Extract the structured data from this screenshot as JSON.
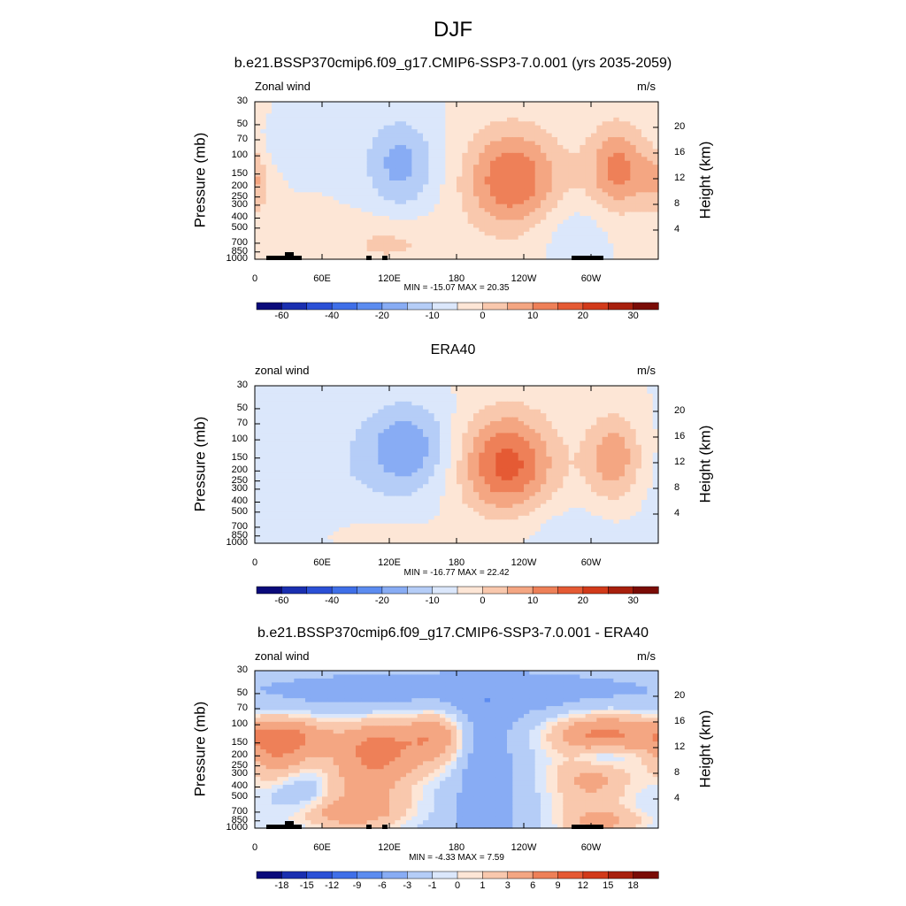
{
  "title": "DJF",
  "chart_data": [
    {
      "type": "heatmap",
      "title": "b.e21.BSSP370cmip6.f09_g17.CMIP6-SSP3-7.0.001 (yrs 2035-2059)",
      "left_label": "Zonal wind",
      "right_label": "m/s",
      "ylabel": "Pressure (mb)",
      "ylabel_right": "Height (km)",
      "x_ticks": [
        "0",
        "60E",
        "120E",
        "180",
        "120W",
        "60W"
      ],
      "y_ticks": [
        "30",
        "50",
        "70",
        "100",
        "150",
        "200",
        "250",
        "300",
        "400",
        "500",
        "700",
        "850",
        "1000"
      ],
      "y_right_ticks": [
        "20",
        "16",
        "12",
        "8",
        "4"
      ],
      "stats": "MIN = -15.07  MAX =  20.35",
      "colorbar_labels": [
        "-60",
        "-40",
        "-20",
        "-10",
        "0",
        "10",
        "20",
        "30"
      ],
      "features": [
        {
          "lon": 0,
          "p": 170,
          "value": 8,
          "dlon": 10,
          "dlogp": 0.25
        },
        {
          "lon": 30,
          "p": 80,
          "value": -4,
          "dlon": 30,
          "dlogp": 0.15
        },
        {
          "lon": 130,
          "p": 120,
          "value": -12,
          "dlon": 22,
          "dlogp": 0.3
        },
        {
          "lon": 230,
          "p": 170,
          "value": 20,
          "dlon": 30,
          "dlogp": 0.35
        },
        {
          "lon": 325,
          "p": 130,
          "value": 17,
          "dlon": 20,
          "dlogp": 0.3
        },
        {
          "lon": 120,
          "p": 700,
          "value": 6,
          "dlon": 40,
          "dlogp": 0.18
        },
        {
          "lon": 280,
          "p": 500,
          "value": -4,
          "dlon": 25,
          "dlogp": 0.2
        },
        {
          "lon": 0,
          "p": 850,
          "value": 4,
          "dlon": 15,
          "dlogp": 0.15
        }
      ]
    },
    {
      "type": "heatmap",
      "title": "ERA40",
      "left_label": "zonal wind",
      "right_label": "m/s",
      "ylabel": "Pressure (mb)",
      "ylabel_right": "Height (km)",
      "x_ticks": [
        "0",
        "60E",
        "120E",
        "180",
        "120W",
        "60W"
      ],
      "y_ticks": [
        "30",
        "50",
        "70",
        "100",
        "150",
        "200",
        "250",
        "300",
        "400",
        "500",
        "700",
        "850",
        "1000"
      ],
      "y_right_ticks": [
        "20",
        "16",
        "12",
        "8",
        "4"
      ],
      "stats": "MIN = -16.77  MAX =  22.42",
      "colorbar_labels": [
        "-60",
        "-40",
        "-20",
        "-10",
        "0",
        "10",
        "20",
        "30"
      ],
      "features": [
        {
          "lon": 135,
          "p": 120,
          "value": -14,
          "dlon": 28,
          "dlogp": 0.3
        },
        {
          "lon": 225,
          "p": 170,
          "value": 22,
          "dlon": 30,
          "dlogp": 0.35
        },
        {
          "lon": 320,
          "p": 150,
          "value": 14,
          "dlon": 18,
          "dlogp": 0.3
        },
        {
          "lon": 50,
          "p": 300,
          "value": -4,
          "dlon": 45,
          "dlogp": 0.5
        },
        {
          "lon": 90,
          "p": 800,
          "value": 3,
          "dlon": 40,
          "dlogp": 0.12
        },
        {
          "lon": 270,
          "p": 700,
          "value": -3,
          "dlon": 40,
          "dlogp": 0.2
        }
      ]
    },
    {
      "type": "heatmap",
      "title": "b.e21.BSSP370cmip6.f09_g17.CMIP6-SSP3-7.0.001 - ERA40",
      "left_label": "zonal wind",
      "right_label": "m/s",
      "ylabel": "Pressure (mb)",
      "ylabel_right": "Height (km)",
      "x_ticks": [
        "0",
        "60E",
        "120E",
        "180",
        "120W",
        "60W"
      ],
      "y_ticks": [
        "30",
        "50",
        "70",
        "100",
        "150",
        "200",
        "250",
        "300",
        "400",
        "500",
        "700",
        "850",
        "1000"
      ],
      "y_right_ticks": [
        "20",
        "16",
        "12",
        "8",
        "4"
      ],
      "stats": "MIN =  -4.33  MAX =   7.59",
      "colorbar_labels": [
        "-18",
        "-15",
        "-12",
        "-9",
        "-6",
        "-3",
        "-1",
        "0",
        "1",
        "3",
        "6",
        "9",
        "12",
        "15",
        "18"
      ],
      "base": -2.5,
      "features": [
        {
          "lon": 30,
          "p": 130,
          "value": 8,
          "dlon": 30,
          "dlogp": 0.15
        },
        {
          "lon": 110,
          "p": 150,
          "value": 7,
          "dlon": 25,
          "dlogp": 0.2
        },
        {
          "lon": 160,
          "p": 130,
          "value": 7,
          "dlon": 20,
          "dlogp": 0.2
        },
        {
          "lon": 310,
          "p": 120,
          "value": 8,
          "dlon": 35,
          "dlogp": 0.15
        },
        {
          "lon": 20,
          "p": 250,
          "value": 5,
          "dlon": 20,
          "dlogp": 0.2
        },
        {
          "lon": 100,
          "p": 350,
          "value": 6,
          "dlon": 35,
          "dlogp": 0.25
        },
        {
          "lon": 300,
          "p": 350,
          "value": 6,
          "dlon": 30,
          "dlogp": 0.25
        },
        {
          "lon": 80,
          "p": 750,
          "value": 5,
          "dlon": 40,
          "dlogp": 0.12
        },
        {
          "lon": 310,
          "p": 900,
          "value": 5,
          "dlon": 30,
          "dlogp": 0.1
        },
        {
          "lon": 205,
          "p": 400,
          "value": -3,
          "dlon": 15,
          "dlogp": 0.8
        },
        {
          "lon": 40,
          "p": 420,
          "value": -3,
          "dlon": 18,
          "dlogp": 0.15
        },
        {
          "lon": 310,
          "p": 200,
          "value": -4,
          "dlon": 20,
          "dlogp": 0.08
        },
        {
          "lon": 180,
          "p": 55,
          "value": -2,
          "dlon": 120,
          "dlogp": 0.15
        }
      ]
    }
  ]
}
